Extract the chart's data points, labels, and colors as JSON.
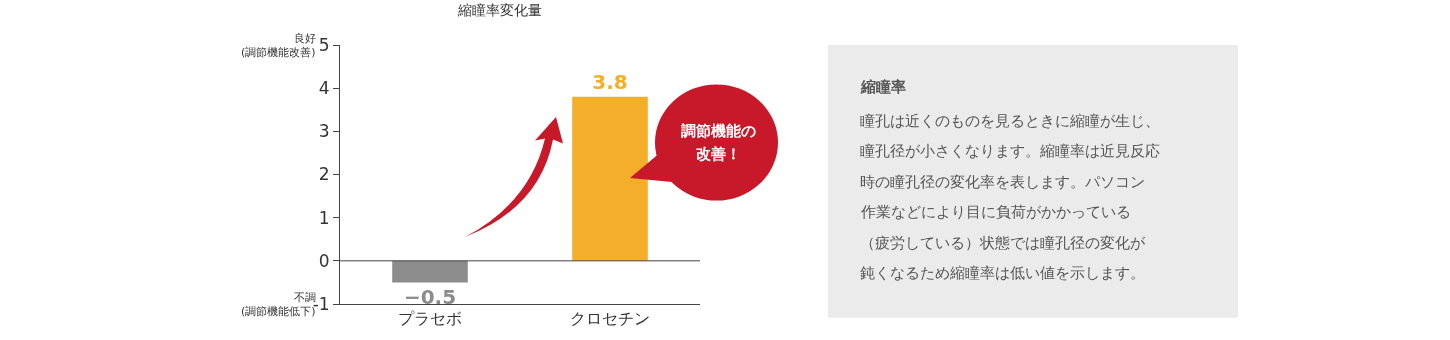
{
  "chart_data": [
    {
      "type": "bar",
      "title": "縮瞳率変化量",
      "categories": [
        "プラセボ",
        "クロセチン"
      ],
      "values": [
        -0.5,
        3.8
      ],
      "colors": [
        "#8c8c8c",
        "#f5ae29"
      ],
      "value_labels": [
        "−0.5",
        "3.8"
      ],
      "ylim": [
        -1,
        5
      ],
      "yticks": [
        -1,
        0,
        1,
        2,
        3,
        4,
        5
      ],
      "ref_lines": [
        {
          "axis": "y",
          "value": 0,
          "color": "#444444"
        }
      ],
      "annotations": [
        "良好\n(調節機能改善)",
        "不調\n(調節機能低下)",
        "調節機能の",
        "改善！"
      ]
    },
    {
      "type": "other",
      "title": "縮瞳率",
      "annotations": [
        "瞳孔は近くのものを見るときに縮瞳が生じ、",
        "瞳孔径が小さくなります。縮瞳率は近見反応",
        "時の瞳孔径の変化率を表します。パソコン",
        "作業などにより目に負荷がかかっている",
        "（疲労している）状態では瞳孔径の変化が",
        "鈍くなるため縮瞳率は低い値を示します。"
      ]
    }
  ]
}
